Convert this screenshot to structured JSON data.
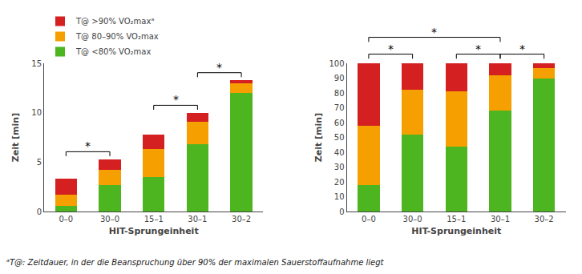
{
  "footnote": "ᵃT@: Zeitdauer, in der die Beanspruchung über 90% der maximalen Sauerstoffaufnahme liegt",
  "chart_data": [
    {
      "type": "bar",
      "stacked": true,
      "categories": [
        "0–0",
        "30–0",
        "15–1",
        "30–1",
        "30–2"
      ],
      "xlabel": "HIT-Sprungeinheit",
      "ylabel": "Zeit [min]",
      "ylim": [
        0,
        15
      ],
      "yticks": [
        0,
        5,
        10,
        15
      ],
      "grid": false,
      "legend": "upper left",
      "series": [
        {
          "name": "T@ <80% VO₂max",
          "color": "#4db520",
          "values": [
            0.6,
            2.7,
            3.5,
            6.8,
            12.0
          ]
        },
        {
          "name": "T@ 80–90% VO₂max",
          "color": "#f5a000",
          "values": [
            1.1,
            1.5,
            2.8,
            2.3,
            1.0
          ]
        },
        {
          "name": "T@ >90% VO₂maxᵃ",
          "color": "#d42020",
          "values": [
            1.6,
            1.1,
            1.5,
            0.9,
            0.3
          ]
        }
      ],
      "annotations": [
        {
          "text": "*",
          "from": "0–0",
          "to": "30–0"
        },
        {
          "text": "*",
          "from": "15–1",
          "to": "30–1"
        },
        {
          "text": "*",
          "from": "30–1",
          "to": "30–2"
        }
      ]
    },
    {
      "type": "bar",
      "stacked": true,
      "categories": [
        "0–0",
        "30–0",
        "15–1",
        "30–1",
        "30–2"
      ],
      "xlabel": "HIT-Sprungeinheit",
      "ylabel": "Zeit [min]",
      "ylim": [
        0,
        100
      ],
      "yticks": [
        0,
        10,
        20,
        30,
        40,
        50,
        60,
        70,
        80,
        90,
        100
      ],
      "grid": false,
      "series": [
        {
          "name": "T@ <80% VO₂max",
          "color": "#4db520",
          "values": [
            18,
            52,
            44,
            68,
            90
          ]
        },
        {
          "name": "T@ 80–90% VO₂max",
          "color": "#f5a000",
          "values": [
            40,
            30,
            37,
            24,
            7
          ]
        },
        {
          "name": "T@ >90% VO₂maxᵃ",
          "color": "#d42020",
          "values": [
            42,
            18,
            19,
            8,
            3
          ]
        }
      ],
      "annotations": [
        {
          "text": "*",
          "from": "0–0",
          "to": "30–0"
        },
        {
          "text": "*",
          "from": "0–0",
          "to": "30–1"
        },
        {
          "text": "*",
          "from": "15–1",
          "to": "30–1"
        },
        {
          "text": "*",
          "from": "30–1",
          "to": "30–2"
        }
      ]
    }
  ]
}
